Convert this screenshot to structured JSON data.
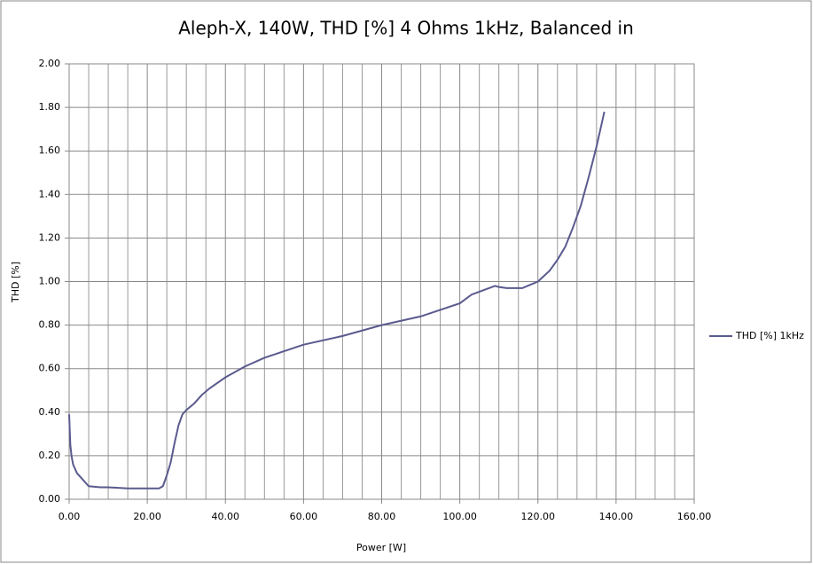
{
  "chart_data": {
    "type": "line",
    "title": "Aleph-X, 140W, THD [%] 4 Ohms 1kHz, Balanced in",
    "x_label": "Power [W]",
    "y_label": "THD [%]",
    "x": [
      0,
      0.3,
      0.6,
      1,
      2,
      3,
      5,
      8,
      10,
      15,
      20,
      23,
      24,
      25,
      26,
      27,
      28,
      29,
      30,
      32,
      34,
      36,
      40,
      45,
      50,
      55,
      60,
      70,
      80,
      90,
      95,
      100,
      103,
      106,
      109,
      110,
      112,
      116,
      118,
      120,
      123,
      125,
      127,
      129,
      131,
      133,
      135,
      137
    ],
    "series": [
      {
        "name": "THD [%] 1kHz",
        "color": "#5a5a8e",
        "values": [
          0.39,
          0.25,
          0.2,
          0.16,
          0.12,
          0.1,
          0.06,
          0.055,
          0.055,
          0.05,
          0.05,
          0.05,
          0.06,
          0.11,
          0.17,
          0.26,
          0.34,
          0.39,
          0.41,
          0.44,
          0.48,
          0.51,
          0.56,
          0.61,
          0.65,
          0.68,
          0.71,
          0.75,
          0.8,
          0.84,
          0.87,
          0.9,
          0.94,
          0.96,
          0.98,
          0.975,
          0.97,
          0.97,
          0.985,
          1.0,
          1.05,
          1.1,
          1.16,
          1.25,
          1.35,
          1.48,
          1.62,
          1.78
        ]
      }
    ],
    "xlim": [
      0,
      160
    ],
    "xticks": [
      {
        "value": 0,
        "label": "0.00"
      },
      {
        "value": 20,
        "label": "20.00"
      },
      {
        "value": 40,
        "label": "40.00"
      },
      {
        "value": 60,
        "label": "60.00"
      },
      {
        "value": 80,
        "label": "80.00"
      },
      {
        "value": 100,
        "label": "100.00"
      },
      {
        "value": 120,
        "label": "120.00"
      },
      {
        "value": 140,
        "label": "140.00"
      },
      {
        "value": 160,
        "label": "160.00"
      }
    ],
    "ylim": [
      0,
      2
    ],
    "yticks": [
      {
        "value": 0,
        "label": "0.00"
      },
      {
        "value": 0.2,
        "label": "0.20"
      },
      {
        "value": 0.4,
        "label": "0.40"
      },
      {
        "value": 0.6,
        "label": "0.60"
      },
      {
        "value": 0.8,
        "label": "0.80"
      },
      {
        "value": 1,
        "label": "1.00"
      },
      {
        "value": 1.2,
        "label": "1.20"
      },
      {
        "value": 1.4,
        "label": "1.40"
      },
      {
        "value": 1.6,
        "label": "1.60"
      },
      {
        "value": 1.8,
        "label": "1.80"
      },
      {
        "value": 2,
        "label": "2.00"
      }
    ],
    "grid": true,
    "legend": "right"
  }
}
